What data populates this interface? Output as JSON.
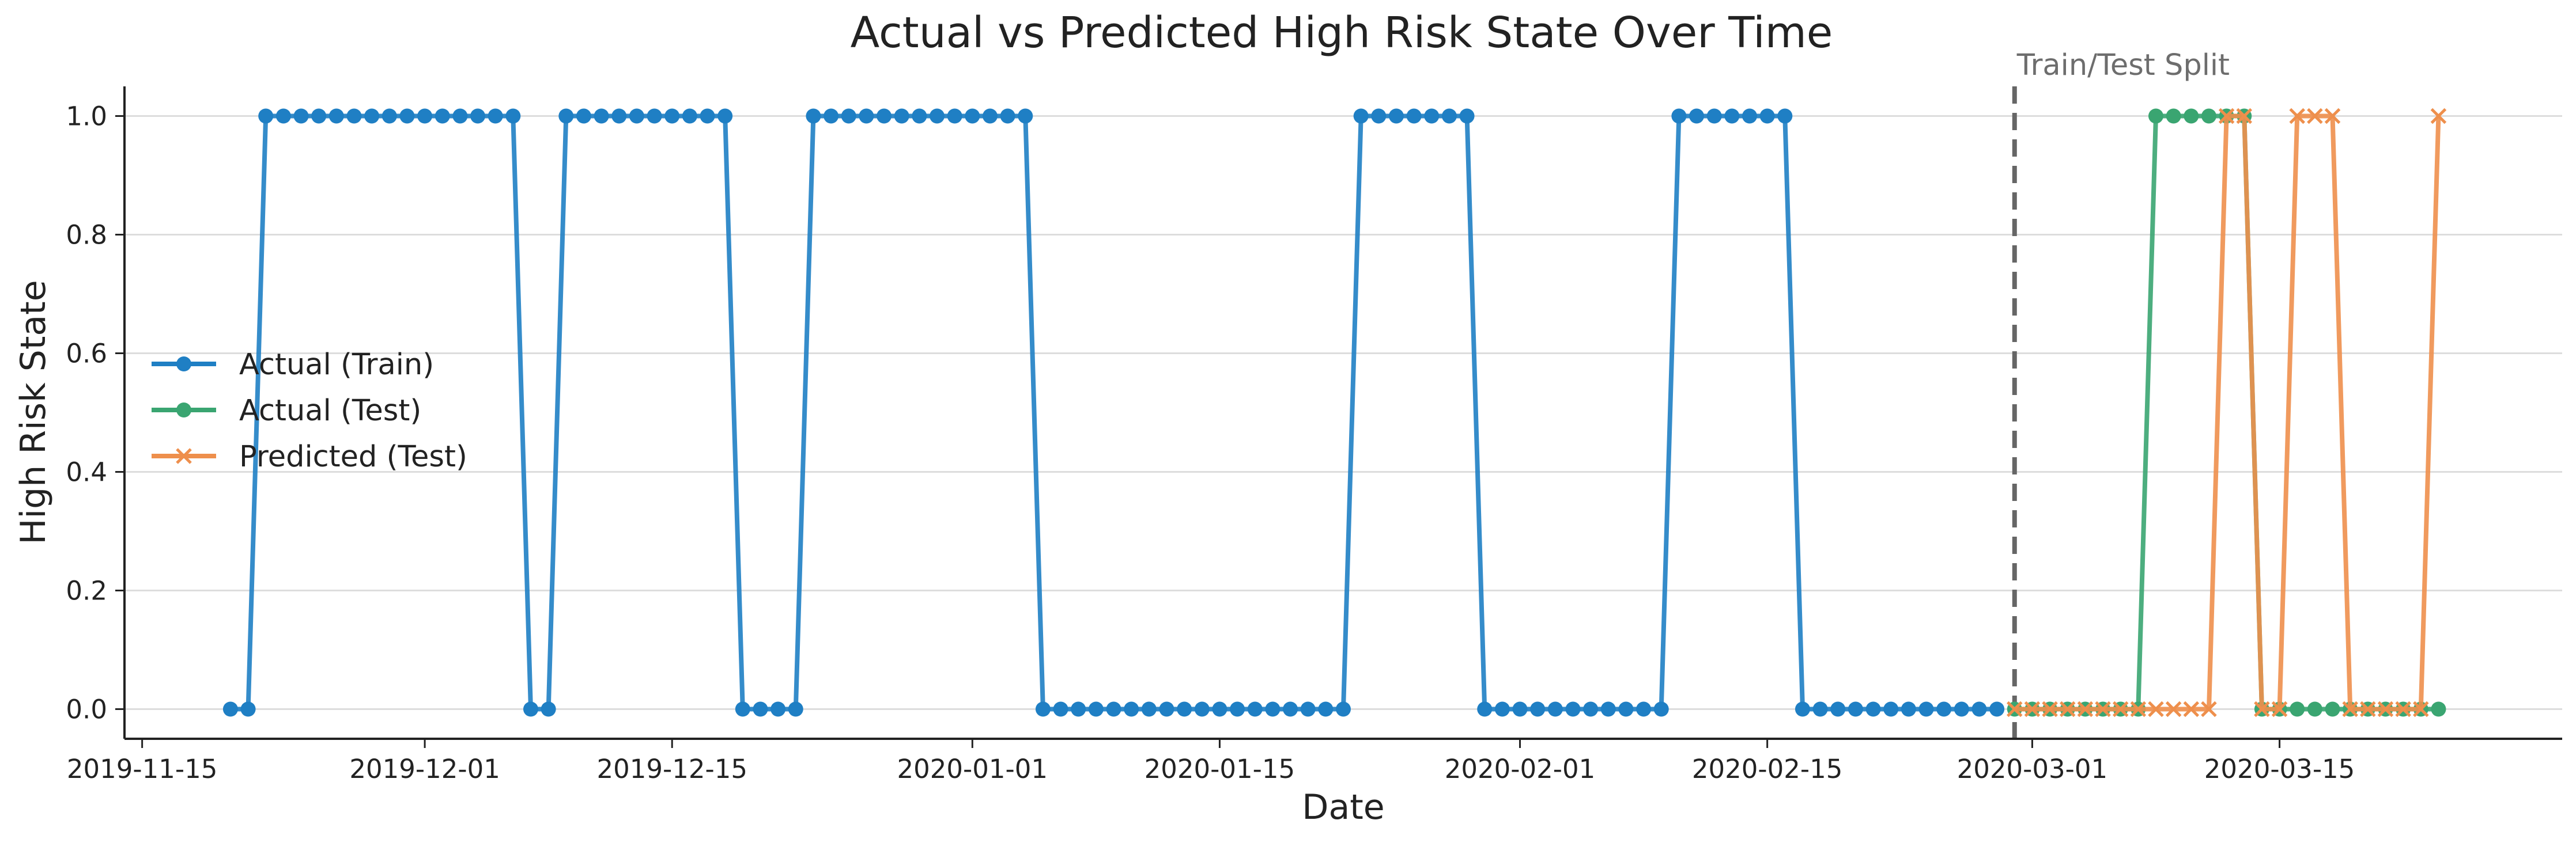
{
  "chart_data": {
    "type": "line",
    "title": "Actual vs Predicted High Risk State Over Time",
    "xlabel": "Date",
    "ylabel": "High Risk State",
    "xlim": [
      "2019-11-14",
      "2020-03-31"
    ],
    "ylim": [
      -0.05,
      1.05
    ],
    "x_ticks": [
      "2019-11-15",
      "2019-12-01",
      "2019-12-15",
      "2020-01-01",
      "2020-01-15",
      "2020-02-01",
      "2020-02-15",
      "2020-03-01",
      "2020-03-15"
    ],
    "y_ticks": [
      0.0,
      0.2,
      0.4,
      0.6,
      0.8,
      1.0
    ],
    "y_tick_labels": [
      "0.0",
      "0.2",
      "0.4",
      "0.6",
      "0.8",
      "1.0"
    ],
    "grid": "horizontal",
    "legend": "center-left",
    "split_date": "2020-02-29",
    "split_label": "Train/Test Split",
    "series": [
      {
        "name": "Actual (Train)",
        "color": "#1f7fc4",
        "marker": "circle",
        "x": [
          "2019-11-20",
          "2019-11-21",
          "2019-11-22",
          "2019-11-23",
          "2019-11-24",
          "2019-11-25",
          "2019-11-26",
          "2019-11-27",
          "2019-11-28",
          "2019-11-29",
          "2019-11-30",
          "2019-12-01",
          "2019-12-02",
          "2019-12-03",
          "2019-12-04",
          "2019-12-05",
          "2019-12-06",
          "2019-12-07",
          "2019-12-08",
          "2019-12-09",
          "2019-12-10",
          "2019-12-11",
          "2019-12-12",
          "2019-12-13",
          "2019-12-14",
          "2019-12-15",
          "2019-12-16",
          "2019-12-17",
          "2019-12-18",
          "2019-12-19",
          "2019-12-20",
          "2019-12-21",
          "2019-12-22",
          "2019-12-23",
          "2019-12-24",
          "2019-12-25",
          "2019-12-26",
          "2019-12-27",
          "2019-12-28",
          "2019-12-29",
          "2019-12-30",
          "2019-12-31",
          "2020-01-01",
          "2020-01-02",
          "2020-01-03",
          "2020-01-04",
          "2020-01-05",
          "2020-01-06",
          "2020-01-07",
          "2020-01-08",
          "2020-01-09",
          "2020-01-10",
          "2020-01-11",
          "2020-01-12",
          "2020-01-13",
          "2020-01-14",
          "2020-01-15",
          "2020-01-16",
          "2020-01-17",
          "2020-01-18",
          "2020-01-19",
          "2020-01-20",
          "2020-01-21",
          "2020-01-22",
          "2020-01-23",
          "2020-01-24",
          "2020-01-25",
          "2020-01-26",
          "2020-01-27",
          "2020-01-28",
          "2020-01-29",
          "2020-01-30",
          "2020-01-31",
          "2020-02-01",
          "2020-02-02",
          "2020-02-03",
          "2020-02-04",
          "2020-02-05",
          "2020-02-06",
          "2020-02-07",
          "2020-02-08",
          "2020-02-09",
          "2020-02-10",
          "2020-02-11",
          "2020-02-12",
          "2020-02-13",
          "2020-02-14",
          "2020-02-15",
          "2020-02-16",
          "2020-02-17",
          "2020-02-18",
          "2020-02-19",
          "2020-02-20",
          "2020-02-21",
          "2020-02-22",
          "2020-02-23",
          "2020-02-24",
          "2020-02-25",
          "2020-02-26",
          "2020-02-27",
          "2020-02-28"
        ],
        "y": [
          0,
          0,
          1,
          1,
          1,
          1,
          1,
          1,
          1,
          1,
          1,
          1,
          1,
          1,
          1,
          1,
          1,
          0,
          0,
          1,
          1,
          1,
          1,
          1,
          1,
          1,
          1,
          1,
          1,
          0,
          0,
          0,
          0,
          1,
          1,
          1,
          1,
          1,
          1,
          1,
          1,
          1,
          1,
          1,
          1,
          1,
          0,
          0,
          0,
          0,
          0,
          0,
          0,
          0,
          0,
          0,
          0,
          0,
          0,
          0,
          0,
          0,
          0,
          0,
          1,
          1,
          1,
          1,
          1,
          1,
          1,
          0,
          0,
          0,
          0,
          0,
          0,
          0,
          0,
          0,
          0,
          0,
          1,
          1,
          1,
          1,
          1,
          1,
          1,
          0,
          0,
          0,
          0,
          0,
          0,
          0,
          0,
          0,
          0,
          0,
          0
        ]
      },
      {
        "name": "Actual (Test)",
        "color": "#3aa571",
        "marker": "circle",
        "x": [
          "2020-02-29",
          "2020-03-01",
          "2020-03-02",
          "2020-03-03",
          "2020-03-04",
          "2020-03-05",
          "2020-03-06",
          "2020-03-07",
          "2020-03-08",
          "2020-03-09",
          "2020-03-10",
          "2020-03-11",
          "2020-03-12",
          "2020-03-13",
          "2020-03-14",
          "2020-03-15",
          "2020-03-16",
          "2020-03-17",
          "2020-03-18",
          "2020-03-19",
          "2020-03-20",
          "2020-03-21",
          "2020-03-22",
          "2020-03-23",
          "2020-03-24"
        ],
        "y": [
          0,
          0,
          0,
          0,
          0,
          0,
          0,
          0,
          1,
          1,
          1,
          1,
          1,
          1,
          0,
          0,
          0,
          0,
          0,
          0,
          0,
          0,
          0,
          0,
          0
        ]
      },
      {
        "name": "Predicted (Test)",
        "color": "#ee8f4c",
        "marker": "x",
        "x": [
          "2020-02-29",
          "2020-03-01",
          "2020-03-02",
          "2020-03-03",
          "2020-03-04",
          "2020-03-05",
          "2020-03-06",
          "2020-03-07",
          "2020-03-08",
          "2020-03-09",
          "2020-03-10",
          "2020-03-11",
          "2020-03-12",
          "2020-03-13",
          "2020-03-14",
          "2020-03-15",
          "2020-03-16",
          "2020-03-17",
          "2020-03-18",
          "2020-03-19",
          "2020-03-20",
          "2020-03-21",
          "2020-03-22",
          "2020-03-23",
          "2020-03-24"
        ],
        "y": [
          0,
          0,
          0,
          0,
          0,
          0,
          0,
          0,
          0,
          0,
          0,
          0,
          1,
          1,
          0,
          0,
          1,
          1,
          1,
          0,
          0,
          0,
          0,
          0,
          1
        ]
      }
    ]
  }
}
